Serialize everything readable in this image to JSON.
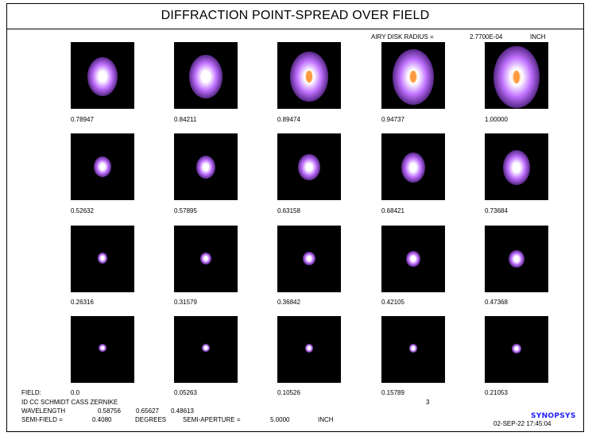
{
  "title": "DIFFRACTION POINT-SPREAD OVER FIELD",
  "airy": {
    "label": "AIRY DISK RADIUS =",
    "value": "2.7700E-04",
    "unit": "INCH"
  },
  "rows": [
    [
      "0.78947",
      "0.84211",
      "0.89474",
      "0.94737",
      "1.00000"
    ],
    [
      "0.52632",
      "0.57895",
      "0.63158",
      "0.68421",
      "0.73684"
    ],
    [
      "0.26316",
      "0.31579",
      "0.36842",
      "0.42105",
      "0.47368"
    ],
    [
      "0.0",
      "0.05263",
      "0.10526",
      "0.15789",
      "0.21053"
    ]
  ],
  "footer": {
    "field_label": "FIELD:",
    "lens_id": "ID CC SCHMIDT CASS ZERNIKE",
    "lens_number": "3",
    "wavelength_label": "WAVELENGTH",
    "wavelengths": [
      "0.58756",
      "0.65627",
      "0.48613"
    ],
    "semifield_label": "SEMI-FIELD =",
    "semifield_value": "0.4080",
    "semifield_unit": "DEGREES",
    "semiaperture_label": "SEMI-APERTURE =",
    "semiaperture_value": "5.0000",
    "semiaperture_unit": "INCH",
    "date": "02-SEP-22  17:45:04",
    "logo": "SYNOPSYS"
  },
  "colors": {
    "psf_core": "#ffffff",
    "psf_halo": "#c070ff",
    "psf_outer": "#5a2a8a",
    "psf_warm": "#ff9a40",
    "logo": "#1a1aff"
  }
}
